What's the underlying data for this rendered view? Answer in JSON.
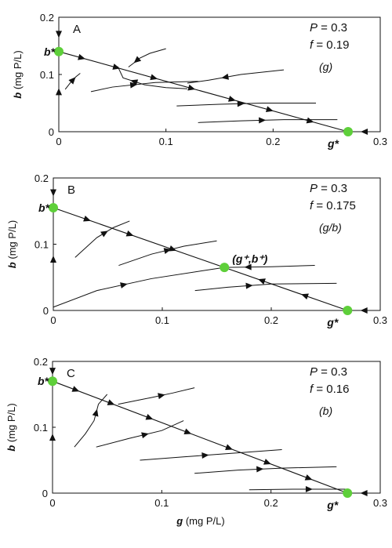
{
  "chart_data": [
    {
      "type": "line",
      "panel_label": "A",
      "params": [
        {
          "name": "P",
          "value": "0.3"
        },
        {
          "name": "f",
          "value": "0.19"
        }
      ],
      "regime": "(g)",
      "xlim": [
        0,
        0.3
      ],
      "ylim": [
        0,
        0.2
      ],
      "x_ticks": [
        "0",
        "0.1",
        "0.2",
        "0.3"
      ],
      "y_ticks": [
        "0",
        "0.1",
        "0.2"
      ],
      "ylabel": "b (mg P/L)",
      "xlabel": "",
      "nullcline": {
        "x": [
          0,
          0.27
        ],
        "y": [
          0.14,
          0
        ]
      },
      "equilibria": [
        {
          "name": "b*",
          "x": 0,
          "y": 0.14
        },
        {
          "name": "g*",
          "x": 0.27,
          "y": 0
        }
      ],
      "series": [
        {
          "x": [
            0.21,
            0.17,
            0.14,
            0.12
          ],
          "y": [
            0.108,
            0.1,
            0.09,
            0.085
          ]
        },
        {
          "x": [
            0.12,
            0.1,
            0.08,
            0.06,
            0.055
          ],
          "y": [
            0.075,
            0.077,
            0.082,
            0.094,
            0.114
          ]
        },
        {
          "x": [
            0.1,
            0.085,
            0.075,
            0.07,
            0.065
          ],
          "y": [
            0.145,
            0.137,
            0.128,
            0.12,
            0.113
          ]
        },
        {
          "x": [
            0.03,
            0.05,
            0.09,
            0.13
          ],
          "y": [
            0.07,
            0.078,
            0.086,
            0.088
          ]
        },
        {
          "x": [
            0.006,
            0.011,
            0.016,
            0.02
          ],
          "y": [
            0.074,
            0.086,
            0.096,
            0.102
          ]
        },
        {
          "x": [
            0.11,
            0.15,
            0.19,
            0.24
          ],
          "y": [
            0.045,
            0.048,
            0.05,
            0.05
          ]
        },
        {
          "x": [
            0.13,
            0.17,
            0.21,
            0.26
          ],
          "y": [
            0.016,
            0.019,
            0.021,
            0.021
          ]
        },
        {
          "x": [
            0.0,
            0.0
          ],
          "y": [
            0.2,
            0.14
          ]
        },
        {
          "x": [
            0.0,
            0.0
          ],
          "y": [
            0.0,
            0.14
          ]
        },
        {
          "x": [
            0.3,
            0.27
          ],
          "y": [
            0.0,
            0.0
          ]
        }
      ]
    },
    {
      "type": "line",
      "panel_label": "B",
      "params": [
        {
          "name": "P",
          "value": "0.3"
        },
        {
          "name": "f",
          "value": "0.175"
        }
      ],
      "regime": "(g/b)",
      "xlim": [
        0,
        0.3
      ],
      "ylim": [
        0,
        0.2
      ],
      "x_ticks": [
        "0",
        "0.1",
        "0.2",
        "0.3"
      ],
      "y_ticks": [
        "0",
        "0.1",
        "0.2"
      ],
      "ylabel": "b (mg P/L)",
      "xlabel": "",
      "nullcline": {
        "x": [
          0,
          0.27
        ],
        "y": [
          0.155,
          0
        ]
      },
      "equilibria": [
        {
          "name": "b*",
          "x": 0,
          "y": 0.155
        },
        {
          "name": "(g⁺,b⁺)",
          "x": 0.157,
          "y": 0.065
        },
        {
          "name": "g*",
          "x": 0.27,
          "y": 0
        }
      ],
      "series": [
        {
          "x": [
            0.0,
            0.04,
            0.09,
            0.157
          ],
          "y": [
            0.005,
            0.03,
            0.048,
            0.065
          ]
        },
        {
          "x": [
            0.24,
            0.2,
            0.157
          ],
          "y": [
            0.068,
            0.066,
            0.065
          ]
        },
        {
          "x": [
            0.02,
            0.04,
            0.055,
            0.07
          ],
          "y": [
            0.08,
            0.11,
            0.125,
            0.135
          ]
        },
        {
          "x": [
            0.06,
            0.09,
            0.12,
            0.15
          ],
          "y": [
            0.068,
            0.085,
            0.097,
            0.105
          ]
        },
        {
          "x": [
            0.13,
            0.16,
            0.2,
            0.26
          ],
          "y": [
            0.03,
            0.035,
            0.04,
            0.041
          ]
        },
        {
          "x": [
            0.0,
            0.0
          ],
          "y": [
            0.2,
            0.155
          ]
        },
        {
          "x": [
            0.0,
            0.0
          ],
          "y": [
            0.0,
            0.155
          ]
        },
        {
          "x": [
            0.3,
            0.27
          ],
          "y": [
            0.0,
            0.0
          ]
        }
      ]
    },
    {
      "type": "line",
      "panel_label": "C",
      "params": [
        {
          "name": "P",
          "value": "0.3"
        },
        {
          "name": "f",
          "value": "0.16"
        }
      ],
      "regime": "(b)",
      "xlim": [
        0,
        0.3
      ],
      "ylim": [
        0,
        0.2
      ],
      "x_ticks": [
        "0",
        "0.1",
        "0.2",
        "0.3"
      ],
      "y_ticks": [
        "0",
        "0.1",
        "0.2"
      ],
      "ylabel": "b (mg P/L)",
      "xlabel": "g (mg P/L)",
      "nullcline": {
        "x": [
          0,
          0.27
        ],
        "y": [
          0.17,
          0
        ]
      },
      "equilibria": [
        {
          "name": "b*",
          "x": 0,
          "y": 0.17
        },
        {
          "name": "g*",
          "x": 0.27,
          "y": 0
        }
      ],
      "series": [
        {
          "x": [
            0.02,
            0.03,
            0.038,
            0.042,
            0.05
          ],
          "y": [
            0.07,
            0.09,
            0.11,
            0.135,
            0.15
          ]
        },
        {
          "x": [
            0.04,
            0.07,
            0.1,
            0.12
          ],
          "y": [
            0.07,
            0.083,
            0.095,
            0.11
          ]
        },
        {
          "x": [
            0.06,
            0.09,
            0.11,
            0.13
          ],
          "y": [
            0.135,
            0.145,
            0.152,
            0.16
          ]
        },
        {
          "x": [
            0.08,
            0.12,
            0.16,
            0.21
          ],
          "y": [
            0.05,
            0.055,
            0.06,
            0.066
          ]
        },
        {
          "x": [
            0.13,
            0.17,
            0.21,
            0.26
          ],
          "y": [
            0.03,
            0.035,
            0.038,
            0.04
          ]
        },
        {
          "x": [
            0.18,
            0.22,
            0.25,
            0.27
          ],
          "y": [
            0.005,
            0.006,
            0.006,
            0.006
          ]
        },
        {
          "x": [
            0.0,
            0.0
          ],
          "y": [
            0.2,
            0.17
          ]
        },
        {
          "x": [
            0.0,
            0.0
          ],
          "y": [
            0.0,
            0.17
          ]
        },
        {
          "x": [
            0.3,
            0.27
          ],
          "y": [
            0.0,
            0.0
          ]
        }
      ]
    }
  ],
  "colors": {
    "equilibrium": "#5ecf3a",
    "ink": "#111111"
  }
}
